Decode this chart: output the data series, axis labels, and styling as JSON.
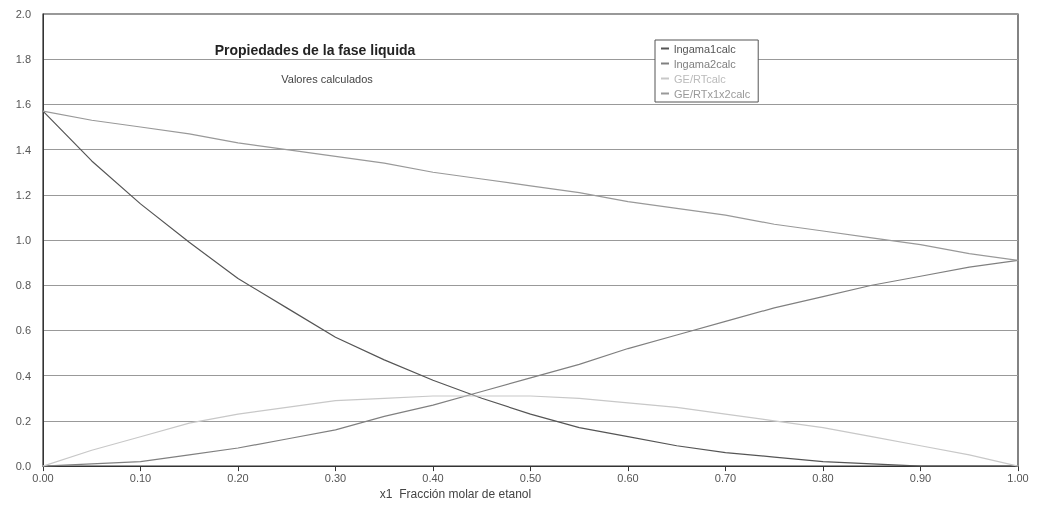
{
  "chart_data": {
    "type": "line",
    "title": "Propiedades de la fase liquida",
    "subtitle": "Valores calculados",
    "xlabel": "x1  Fracción molar de etanol",
    "x": [
      0,
      0.05,
      0.1,
      0.15,
      0.2,
      0.25,
      0.3,
      0.35,
      0.4,
      0.45,
      0.5,
      0.55,
      0.6,
      0.65,
      0.7,
      0.75,
      0.8,
      0.85,
      0.9,
      0.95,
      1
    ],
    "series": [
      {
        "name": "lngama1calc",
        "color": "#555555",
        "values": [
          1.57,
          1.35,
          1.16,
          0.99,
          0.83,
          0.7,
          0.57,
          0.47,
          0.38,
          0.3,
          0.23,
          0.17,
          0.13,
          0.09,
          0.06,
          0.04,
          0.02,
          0.01,
          0.0,
          0.0,
          0.0
        ]
      },
      {
        "name": "lngama2calc",
        "color": "#808080",
        "values": [
          0.0,
          0.01,
          0.02,
          0.05,
          0.08,
          0.12,
          0.16,
          0.22,
          0.27,
          0.33,
          0.39,
          0.45,
          0.52,
          0.58,
          0.64,
          0.7,
          0.75,
          0.8,
          0.84,
          0.88,
          0.91
        ]
      },
      {
        "name": "GE/RTcalc",
        "color": "#c8c8c8",
        "values": [
          0.0,
          0.07,
          0.13,
          0.19,
          0.23,
          0.26,
          0.29,
          0.3,
          0.31,
          0.31,
          0.31,
          0.3,
          0.28,
          0.26,
          0.23,
          0.2,
          0.17,
          0.13,
          0.09,
          0.05,
          0.0
        ]
      },
      {
        "name": "GE/RTx1x2calc",
        "color": "#999999",
        "values": [
          1.57,
          1.53,
          1.5,
          1.47,
          1.43,
          1.4,
          1.37,
          1.34,
          1.3,
          1.27,
          1.24,
          1.21,
          1.17,
          1.14,
          1.11,
          1.07,
          1.04,
          1.01,
          0.98,
          0.94,
          0.91
        ]
      }
    ],
    "xlim": [
      0,
      1
    ],
    "xticks": [
      {
        "value": 0,
        "label": "0.00"
      },
      {
        "value": 0.1,
        "label": "0.10"
      },
      {
        "value": 0.2,
        "label": "0.20"
      },
      {
        "value": 0.3,
        "label": "0.30"
      },
      {
        "value": 0.4,
        "label": "0.40"
      },
      {
        "value": 0.5,
        "label": "0.50"
      },
      {
        "value": 0.6,
        "label": "0.60"
      },
      {
        "value": 0.7,
        "label": "0.70"
      },
      {
        "value": 0.8,
        "label": "0.80"
      },
      {
        "value": 0.9,
        "label": "0.90"
      },
      {
        "value": 1,
        "label": "1.00"
      }
    ],
    "ylim": [
      0,
      2
    ],
    "yticks": [
      {
        "value": 0,
        "label": "0.0"
      },
      {
        "value": 0.2,
        "label": "0.2"
      },
      {
        "value": 0.4,
        "label": "0.4"
      },
      {
        "value": 0.6,
        "label": "0.6"
      },
      {
        "value": 0.8,
        "label": "0.8"
      },
      {
        "value": 1,
        "label": "1.0"
      },
      {
        "value": 1.2,
        "label": "1.2"
      },
      {
        "value": 1.4,
        "label": "1.4"
      },
      {
        "value": 1.6,
        "label": "1.6"
      },
      {
        "value": 1.8,
        "label": "1.8"
      },
      {
        "value": 2,
        "label": "2.0"
      }
    ],
    "grid": "y",
    "legend": "top",
    "marker": "none",
    "line_style": "solid"
  }
}
